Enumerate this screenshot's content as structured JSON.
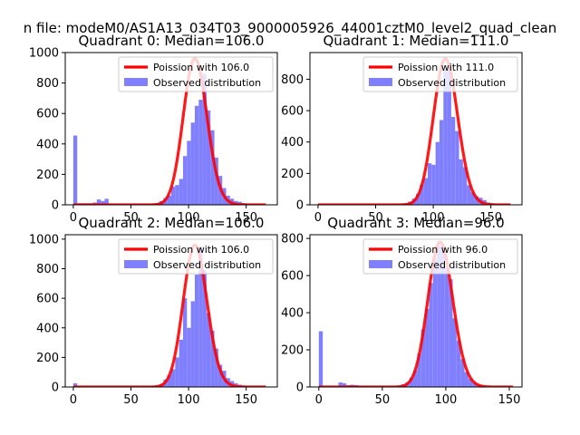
{
  "figure": {
    "suptitle": "n file: modeM0/AS1A13_034T03_9000005926_44001cztM0_level2_quad_clean"
  },
  "colors": {
    "fit_line": "#ff0000",
    "histogram": "#8080ff",
    "axis": "#000000"
  },
  "chart_data": [
    {
      "type": "bar",
      "title": "Quadrant 0: Median=106.0",
      "xlabel": "",
      "ylabel": "",
      "xlim": [
        -7,
        177
      ],
      "ylim": [
        0,
        1000
      ],
      "xticks": [
        0,
        50,
        100,
        150
      ],
      "yticks": [
        0,
        200,
        400,
        600,
        800,
        1000
      ],
      "grid": false,
      "legend_position": "top-right",
      "series": [
        {
          "name": "Poission with 106.0",
          "kind": "line",
          "mean": 106.0,
          "x_range": [
            0,
            167
          ],
          "peak": 960
        },
        {
          "name": "Observed distribution",
          "kind": "histogram",
          "bin_width": 3.4,
          "bins": [
            {
              "x": 0,
              "count": 455
            },
            {
              "x": 3.4,
              "count": 10
            },
            {
              "x": 6.8,
              "count": 10
            },
            {
              "x": 10.2,
              "count": 10
            },
            {
              "x": 13.6,
              "count": 10
            },
            {
              "x": 17,
              "count": 15
            },
            {
              "x": 20.4,
              "count": 35
            },
            {
              "x": 23.8,
              "count": 25
            },
            {
              "x": 27.2,
              "count": 40
            },
            {
              "x": 30.6,
              "count": 8
            },
            {
              "x": 34,
              "count": 5
            },
            {
              "x": 37.4,
              "count": 5
            },
            {
              "x": 40.8,
              "count": 5
            },
            {
              "x": 44.2,
              "count": 5
            },
            {
              "x": 47.6,
              "count": 5
            },
            {
              "x": 51,
              "count": 5
            },
            {
              "x": 54.4,
              "count": 5
            },
            {
              "x": 57.8,
              "count": 5
            },
            {
              "x": 61.2,
              "count": 5
            },
            {
              "x": 64.6,
              "count": 5
            },
            {
              "x": 68,
              "count": 8
            },
            {
              "x": 71.4,
              "count": 12
            },
            {
              "x": 74.8,
              "count": 25
            },
            {
              "x": 78.2,
              "count": 45
            },
            {
              "x": 81.6,
              "count": 60
            },
            {
              "x": 85,
              "count": 120
            },
            {
              "x": 88.4,
              "count": 130
            },
            {
              "x": 91.8,
              "count": 170
            },
            {
              "x": 95.2,
              "count": 320
            },
            {
              "x": 98.6,
              "count": 420
            },
            {
              "x": 102,
              "count": 540
            },
            {
              "x": 105.4,
              "count": 650
            },
            {
              "x": 108.8,
              "count": 690
            },
            {
              "x": 112.2,
              "count": 860
            },
            {
              "x": 115.6,
              "count": 620
            },
            {
              "x": 119,
              "count": 490
            },
            {
              "x": 122.4,
              "count": 310
            },
            {
              "x": 125.8,
              "count": 190
            },
            {
              "x": 129.2,
              "count": 110
            },
            {
              "x": 132.6,
              "count": 60
            },
            {
              "x": 136,
              "count": 40
            },
            {
              "x": 139.4,
              "count": 25
            },
            {
              "x": 142.8,
              "count": 20
            },
            {
              "x": 146.2,
              "count": 12
            },
            {
              "x": 149.6,
              "count": 8
            }
          ]
        }
      ]
    },
    {
      "type": "bar",
      "title": "Quadrant 1: Median=111.0",
      "xlabel": "",
      "ylabel": "",
      "xlim": [
        -7,
        177
      ],
      "ylim": [
        0,
        970
      ],
      "xticks": [
        0,
        50,
        100,
        150
      ],
      "yticks": [
        0,
        200,
        400,
        600,
        800
      ],
      "grid": false,
      "legend_position": "top-right",
      "series": [
        {
          "name": "Poission with 111.0",
          "kind": "line",
          "mean": 111.0,
          "x_range": [
            0,
            167
          ],
          "peak": 930
        },
        {
          "name": "Observed distribution",
          "kind": "histogram",
          "bin_width": 3.4,
          "bins": [
            {
              "x": 71.4,
              "count": 5
            },
            {
              "x": 74.8,
              "count": 10
            },
            {
              "x": 78.2,
              "count": 20
            },
            {
              "x": 81.6,
              "count": 40
            },
            {
              "x": 85,
              "count": 70
            },
            {
              "x": 88.4,
              "count": 130
            },
            {
              "x": 91.8,
              "count": 170
            },
            {
              "x": 95.2,
              "count": 265
            },
            {
              "x": 98.6,
              "count": 255
            },
            {
              "x": 102,
              "count": 400
            },
            {
              "x": 105.4,
              "count": 540
            },
            {
              "x": 108.8,
              "count": 860
            },
            {
              "x": 112.2,
              "count": 890
            },
            {
              "x": 115.6,
              "count": 560
            },
            {
              "x": 119,
              "count": 470
            },
            {
              "x": 122.4,
              "count": 290
            },
            {
              "x": 125.8,
              "count": 240
            },
            {
              "x": 129.2,
              "count": 125
            },
            {
              "x": 132.6,
              "count": 80
            },
            {
              "x": 136,
              "count": 55
            },
            {
              "x": 139.4,
              "count": 45
            },
            {
              "x": 142.8,
              "count": 30
            },
            {
              "x": 146.2,
              "count": 15
            },
            {
              "x": 149.6,
              "count": 10
            }
          ]
        }
      ]
    },
    {
      "type": "bar",
      "title": "Quadrant 2: Median=106.0",
      "xlabel": "",
      "ylabel": "",
      "xlim": [
        -7,
        177
      ],
      "ylim": [
        0,
        1030
      ],
      "xticks": [
        0,
        50,
        100,
        150
      ],
      "yticks": [
        0,
        200,
        400,
        600,
        800,
        1000
      ],
      "grid": false,
      "legend_position": "top-right",
      "series": [
        {
          "name": "Poission with 106.0",
          "kind": "line",
          "mean": 106.0,
          "x_range": [
            0,
            167
          ],
          "peak": 960
        },
        {
          "name": "Observed distribution",
          "kind": "histogram",
          "bin_width": 3.4,
          "bins": [
            {
              "x": 0,
              "count": 25
            },
            {
              "x": 3.4,
              "count": 5
            },
            {
              "x": 68,
              "count": 5
            },
            {
              "x": 71.4,
              "count": 10
            },
            {
              "x": 74.8,
              "count": 20
            },
            {
              "x": 78.2,
              "count": 50
            },
            {
              "x": 81.6,
              "count": 80
            },
            {
              "x": 85,
              "count": 120
            },
            {
              "x": 88.4,
              "count": 200
            },
            {
              "x": 91.8,
              "count": 320
            },
            {
              "x": 95.2,
              "count": 600
            },
            {
              "x": 98.6,
              "count": 400
            },
            {
              "x": 102,
              "count": 580
            },
            {
              "x": 105.4,
              "count": 760
            },
            {
              "x": 108.8,
              "count": 950
            },
            {
              "x": 112.2,
              "count": 790
            },
            {
              "x": 115.6,
              "count": 500
            },
            {
              "x": 119,
              "count": 380
            },
            {
              "x": 122.4,
              "count": 260
            },
            {
              "x": 125.8,
              "count": 150
            },
            {
              "x": 129.2,
              "count": 110
            },
            {
              "x": 132.6,
              "count": 60
            },
            {
              "x": 136,
              "count": 40
            },
            {
              "x": 139.4,
              "count": 25
            },
            {
              "x": 142.8,
              "count": 15
            },
            {
              "x": 146.2,
              "count": 10
            }
          ]
        }
      ]
    },
    {
      "type": "bar",
      "title": "Quadrant 3: Median=96.0",
      "xlabel": "",
      "ylabel": "",
      "xlim": [
        -7,
        160
      ],
      "ylim": [
        0,
        820
      ],
      "xticks": [
        0,
        50,
        100,
        150
      ],
      "yticks": [
        0,
        200,
        400,
        600,
        800
      ],
      "grid": false,
      "legend_position": "top-right",
      "series": [
        {
          "name": "Poission with 96.0",
          "kind": "line",
          "mean": 96.0,
          "x_range": [
            0,
            153
          ],
          "peak": 780
        },
        {
          "name": "Observed distribution",
          "kind": "histogram",
          "bin_width": 3.1,
          "bins": [
            {
              "x": 0,
              "count": 300
            },
            {
              "x": 15.5,
              "count": 25
            },
            {
              "x": 18.6,
              "count": 20
            },
            {
              "x": 21.7,
              "count": 10
            },
            {
              "x": 24.8,
              "count": 12
            },
            {
              "x": 27.9,
              "count": 10
            },
            {
              "x": 31,
              "count": 5
            },
            {
              "x": 55.8,
              "count": 5
            },
            {
              "x": 62,
              "count": 8
            },
            {
              "x": 65.1,
              "count": 15
            },
            {
              "x": 68.2,
              "count": 25
            },
            {
              "x": 71.3,
              "count": 50
            },
            {
              "x": 74.4,
              "count": 90
            },
            {
              "x": 77.5,
              "count": 180
            },
            {
              "x": 80.6,
              "count": 310
            },
            {
              "x": 83.7,
              "count": 420
            },
            {
              "x": 86.8,
              "count": 560
            },
            {
              "x": 89.9,
              "count": 690
            },
            {
              "x": 93,
              "count": 760
            },
            {
              "x": 96.1,
              "count": 770
            },
            {
              "x": 99.2,
              "count": 640
            },
            {
              "x": 102.3,
              "count": 580
            },
            {
              "x": 105.4,
              "count": 370
            },
            {
              "x": 108.5,
              "count": 250
            },
            {
              "x": 111.6,
              "count": 150
            },
            {
              "x": 114.7,
              "count": 80
            },
            {
              "x": 117.8,
              "count": 45
            },
            {
              "x": 120.9,
              "count": 25
            },
            {
              "x": 124,
              "count": 12
            },
            {
              "x": 127.1,
              "count": 8
            }
          ]
        }
      ]
    }
  ]
}
